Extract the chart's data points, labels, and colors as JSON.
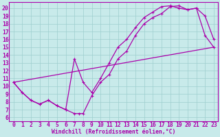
{
  "xlabel": "Windchill (Refroidissement éolien,°C)",
  "bg_color": "#c8eaea",
  "line_color": "#aa00aa",
  "grid_color": "#9ecece",
  "font_color": "#aa00aa",
  "xlim": [
    -0.5,
    23.5
  ],
  "ylim": [
    5.5,
    20.8
  ],
  "xticks": [
    0,
    1,
    2,
    3,
    4,
    5,
    6,
    7,
    8,
    9,
    10,
    11,
    12,
    13,
    14,
    15,
    16,
    17,
    18,
    19,
    20,
    21,
    22,
    23
  ],
  "yticks": [
    6,
    7,
    8,
    9,
    10,
    11,
    12,
    13,
    14,
    15,
    16,
    17,
    18,
    19,
    20
  ],
  "font_size": 5.8,
  "marker_size": 3.5,
  "line_width": 0.9,
  "straight_line_x": [
    0,
    23
  ],
  "straight_line_y": [
    10.5,
    15.0
  ],
  "curve1_x": [
    0,
    1,
    2,
    3,
    4,
    5,
    6,
    7,
    7.5,
    8,
    9,
    10,
    11,
    12,
    13,
    14,
    15,
    16,
    17,
    18,
    19,
    20,
    21,
    22,
    23
  ],
  "curve1_y": [
    10.5,
    9.2,
    8.2,
    7.7,
    8.2,
    7.5,
    7.0,
    6.5,
    6.5,
    6.5,
    8.8,
    10.5,
    11.5,
    13.5,
    14.5,
    16.5,
    18.0,
    18.8,
    19.3,
    20.2,
    20.3,
    19.8,
    20.0,
    19.0,
    16.0
  ],
  "curve2_x": [
    0,
    1,
    2,
    3,
    4,
    5,
    6,
    7,
    8,
    9,
    10,
    11,
    12,
    13,
    14,
    15,
    16,
    17,
    18,
    19,
    20,
    21,
    22,
    23
  ],
  "curve2_y": [
    10.5,
    9.2,
    8.2,
    7.7,
    8.2,
    7.5,
    7.0,
    13.5,
    10.5,
    9.2,
    11.0,
    13.0,
    15.0,
    16.0,
    17.5,
    18.8,
    19.5,
    20.2,
    20.3,
    20.0,
    19.8,
    20.0,
    16.5,
    15.0
  ]
}
